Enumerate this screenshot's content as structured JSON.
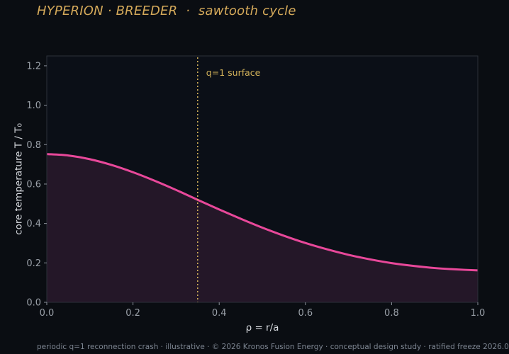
{
  "header": {
    "title": "HYPERION · BREEDER  ·  sawtooth cycle"
  },
  "footer": {
    "text": "periodic q=1 reconnection crash · illustrative · © 2026 Kronos Fusion Energy · conceptual design study · ratified freeze 2026.0"
  },
  "colors": {
    "background": "#0a0d12",
    "plot_background": "#0b0f17",
    "curve": "#e8489a",
    "fill": "#241728",
    "marker": "#d4b35a",
    "title": "#d4a95a"
  },
  "chart_data": {
    "type": "line",
    "xlabel": "ρ = r/a",
    "ylabel": "core temperature T / T₀",
    "xlim": [
      0,
      1
    ],
    "ylim": [
      0,
      1.25
    ],
    "xticks": [
      0.0,
      0.2,
      0.4,
      0.6,
      0.8,
      1.0
    ],
    "xtick_labels": [
      "0.0",
      "0.2",
      "0.4",
      "0.6",
      "0.8",
      "1.0"
    ],
    "yticks": [
      0.0,
      0.2,
      0.4,
      0.6,
      0.8,
      1.0,
      1.2
    ],
    "ytick_labels": [
      "0.0",
      "0.2",
      "0.4",
      "0.6",
      "0.8",
      "1.0",
      "1.2"
    ],
    "grid": false,
    "series": [
      {
        "x": [
          0.0,
          0.05,
          0.1,
          0.15,
          0.2,
          0.25,
          0.3,
          0.35,
          0.4,
          0.45,
          0.5,
          0.55,
          0.6,
          0.65,
          0.7,
          0.75,
          0.8,
          0.85,
          0.9,
          0.95,
          1.0
        ],
        "y": [
          0.752,
          0.745,
          0.726,
          0.697,
          0.66,
          0.617,
          0.57,
          0.52,
          0.471,
          0.424,
          0.379,
          0.338,
          0.301,
          0.269,
          0.241,
          0.218,
          0.199,
          0.185,
          0.174,
          0.167,
          0.162
        ]
      }
    ],
    "vline": {
      "x": 0.35,
      "label": "q=1 surface"
    }
  }
}
